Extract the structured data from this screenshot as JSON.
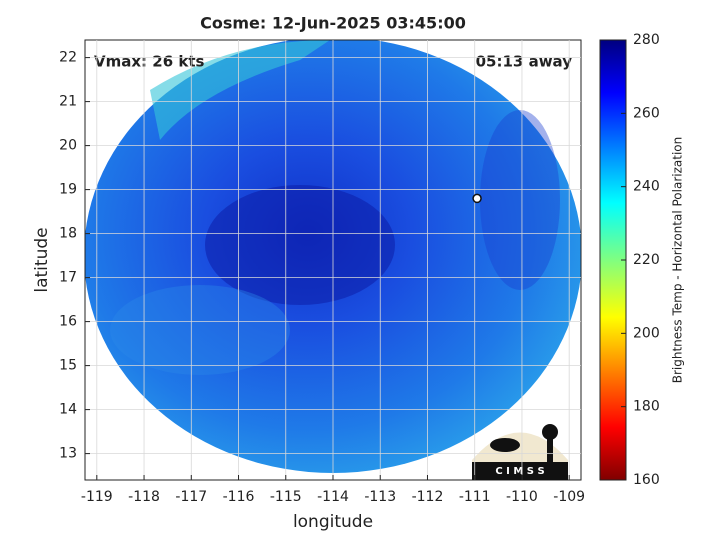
{
  "chart_data": {
    "type": "image",
    "title": "Cosme: 12-Jun-2025 03:45:00",
    "annotations": {
      "left": "Vmax: 26 kts",
      "right": "05:13 away"
    },
    "xlabel": "longitude",
    "ylabel": "latitude",
    "xlim": [
      -119.25,
      -108.75
    ],
    "xticks": [
      -119,
      -118,
      -117,
      -116,
      -115,
      -114,
      -113,
      -112,
      -111,
      -110,
      -109
    ],
    "ylim": [
      12.4,
      22.4
    ],
    "yticks": [
      13,
      14,
      15,
      16,
      17,
      18,
      19,
      20,
      21,
      22
    ],
    "grid": true,
    "storm_center": {
      "x": -110.95,
      "y": 18.8
    },
    "colorbar": {
      "label": "Brightness Temp - Horizontal Polarization",
      "lim": [
        160,
        280
      ],
      "ticks": [
        160,
        180,
        200,
        220,
        240,
        260,
        280
      ],
      "colormap": "jet"
    },
    "logo": "C I M S S"
  }
}
